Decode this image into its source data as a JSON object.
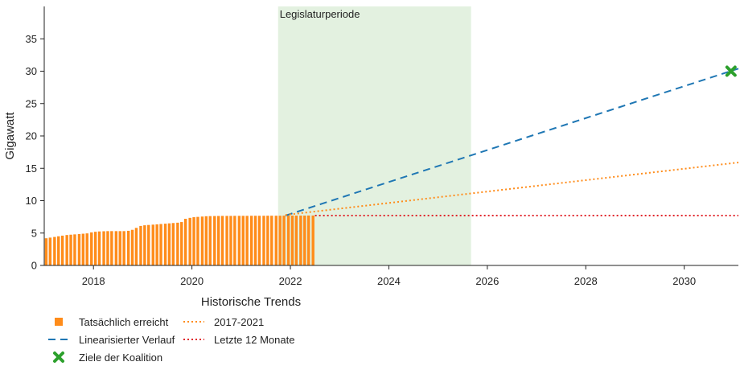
{
  "chart_data": {
    "type": "bar",
    "ylabel": "Gigawatt",
    "xlim": [
      2017.0,
      2031.1
    ],
    "ylim": [
      0,
      40
    ],
    "xticks": [
      2018,
      2020,
      2022,
      2024,
      2026,
      2028,
      2030
    ],
    "yticks": [
      0,
      5,
      10,
      15,
      20,
      25,
      30,
      35
    ],
    "band": {
      "label": "Legislaturperiode",
      "start": 2021.75,
      "end": 2025.67,
      "color": "#e3f1e0"
    },
    "bars": {
      "name": "Tatsächlich erreicht",
      "color": "#ff8c1a",
      "x": [
        2017.04,
        2017.12,
        2017.21,
        2017.29,
        2017.37,
        2017.46,
        2017.54,
        2017.62,
        2017.71,
        2017.79,
        2017.87,
        2017.96,
        2018.04,
        2018.12,
        2018.21,
        2018.29,
        2018.37,
        2018.46,
        2018.54,
        2018.62,
        2018.71,
        2018.79,
        2018.87,
        2018.96,
        2019.04,
        2019.12,
        2019.21,
        2019.29,
        2019.37,
        2019.46,
        2019.54,
        2019.62,
        2019.71,
        2019.79,
        2019.87,
        2019.96,
        2020.04,
        2020.12,
        2020.21,
        2020.29,
        2020.37,
        2020.46,
        2020.54,
        2020.62,
        2020.71,
        2020.79,
        2020.87,
        2020.96,
        2021.04,
        2021.12,
        2021.21,
        2021.29,
        2021.37,
        2021.46,
        2021.54,
        2021.62,
        2021.71,
        2021.79,
        2021.87,
        2021.96,
        2022.04,
        2022.12,
        2022.21,
        2022.29,
        2022.37,
        2022.46
      ],
      "values": [
        4.2,
        4.3,
        4.4,
        4.5,
        4.6,
        4.7,
        4.75,
        4.8,
        4.85,
        4.9,
        4.95,
        5.1,
        5.2,
        5.25,
        5.28,
        5.3,
        5.3,
        5.3,
        5.3,
        5.3,
        5.35,
        5.5,
        5.8,
        6.1,
        6.2,
        6.25,
        6.3,
        6.35,
        6.4,
        6.45,
        6.5,
        6.55,
        6.6,
        6.7,
        7.2,
        7.35,
        7.45,
        7.5,
        7.55,
        7.6,
        7.62,
        7.63,
        7.64,
        7.65,
        7.65,
        7.65,
        7.66,
        7.66,
        7.66,
        7.66,
        7.67,
        7.67,
        7.67,
        7.67,
        7.68,
        7.68,
        7.68,
        7.68,
        7.69,
        7.69,
        7.7,
        7.7,
        7.7,
        7.7,
        7.71,
        7.71
      ]
    },
    "lines": [
      {
        "name": "Linearisierter Verlauf",
        "style": "dashed",
        "color": "#1f77b4",
        "x": [
          2021.9,
          2031.1
        ],
        "y": [
          7.7,
          30.4
        ]
      },
      {
        "name": "2017-2021",
        "style": "dotted",
        "color": "#ff8c1a",
        "x": [
          2021.9,
          2031.1
        ],
        "y": [
          7.8,
          15.9
        ]
      },
      {
        "name": "Letzte 12 Monate",
        "style": "dotted",
        "color": "#e0252b",
        "x": [
          2022.5,
          2031.1
        ],
        "y": [
          7.7,
          7.7
        ]
      }
    ],
    "target": {
      "name": "Ziele der Koalition",
      "x": 2030.95,
      "y": 30,
      "color": "#2ca02c"
    },
    "legend": {
      "placement": "bottom-left",
      "group_title": "Historische Trends",
      "items": [
        {
          "label": "Tatsächlich erreicht",
          "kind": "square",
          "color": "#ff8c1a"
        },
        {
          "label": "Linearisierter Verlauf",
          "kind": "dashed",
          "color": "#1f77b4"
        },
        {
          "label": "Ziele der Koalition",
          "kind": "cross",
          "color": "#2ca02c"
        },
        {
          "label": "2017-2021",
          "kind": "dotted",
          "color": "#ff8c1a"
        },
        {
          "label": "Letzte 12 Monate",
          "kind": "dotted",
          "color": "#e0252b"
        }
      ]
    },
    "grid": false
  }
}
